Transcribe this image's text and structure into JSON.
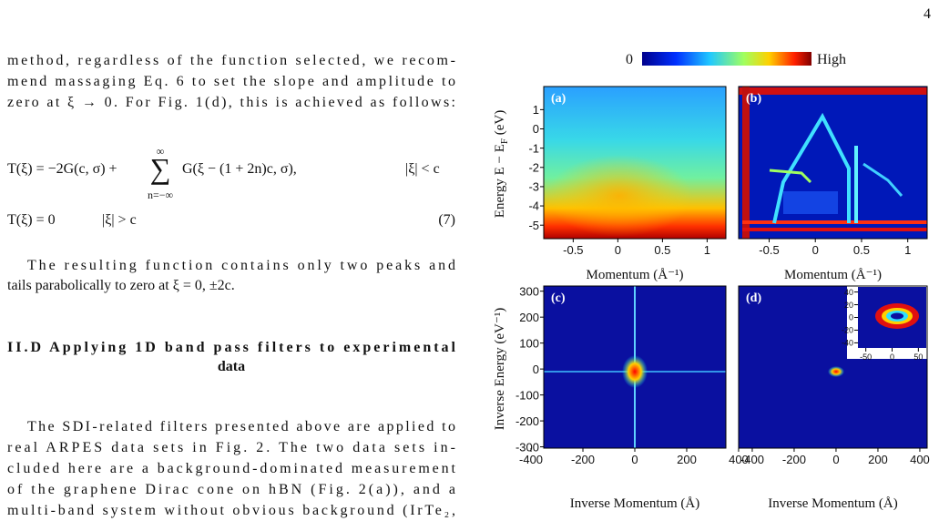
{
  "page_number": "4",
  "body": {
    "paragraph_1": [
      "method, regardless of the function selected, we recom-",
      "mend massaging Eq. 6 to set the slope and amplitude to",
      "zero at ξ → 0. For Fig. 1(d), this is achieved as follows:"
    ],
    "equation": {
      "line_1": {
        "lhs": "T(ξ) = −2G(c, σ) +",
        "sum": "∑",
        "upper": "∞",
        "lower": "n=−∞",
        "term": "G(ξ − (1 + 2n)c, σ),",
        "condition": "|ξ| < c"
      },
      "line_2": {
        "lhs": "T(ξ) = 0",
        "condition": "|ξ| > c",
        "number": "(7)"
      }
    },
    "paragraph_2": [
      "The resulting function contains only two peaks and",
      "tails parabolically to zero at ξ = 0, ±2c."
    ],
    "heading": [
      "II.D Applying 1D band pass filters to experimental",
      "data"
    ],
    "paragraph_3": [
      "The SDI-related filters presented above are applied to",
      "real ARPES data sets in Fig. 2. The two data sets in-",
      "cluded here are a background-dominated measurement",
      "of the graphene Dirac cone on hBN (Fig. 2(a)), and a",
      "multi-band system without obvious background (IrTe₂,"
    ]
  },
  "figure": {
    "colorbar": {
      "low": "0",
      "high": "High"
    },
    "y_labels": [
      {
        "main": "Energy  E − E",
        "sub": "F",
        "unit": " (eV)"
      },
      {
        "main": "Inverse Energy  (eV⁻¹)"
      }
    ],
    "panels": [
      {
        "label": "(a)",
        "x_label": "Momentum (Å⁻¹)",
        "xlim": [
          -0.83,
          1.21
        ],
        "ylim": [
          -5.7,
          2.2
        ],
        "xticks": [
          -0.5,
          0,
          0.5,
          1
        ],
        "yticks": [
          1,
          0,
          -1,
          -2,
          -3,
          -4,
          -5
        ]
      },
      {
        "label": "(b)",
        "x_label": "Momentum (Å⁻¹)",
        "xlim": [
          -0.83,
          1.21
        ],
        "ylim": [
          -5.7,
          2.2
        ],
        "xticks": [
          -0.5,
          0,
          0.5,
          1
        ]
      },
      {
        "label": "(c)",
        "x_label": "Inverse Momentum (Å)",
        "xlim": [
          -351,
          351
        ],
        "ylim": [
          -305,
          320
        ],
        "xticks": [
          -400,
          -200,
          0,
          200,
          400
        ],
        "yticks": [
          300,
          200,
          100,
          0,
          -100,
          -200,
          -300
        ]
      },
      {
        "label": "(d)",
        "x_label": "Inverse Momentum (Å)",
        "xlim": [
          -465,
          435
        ],
        "ylim": [
          -305,
          320
        ],
        "xticks": [
          -400,
          -200,
          0,
          200,
          400
        ]
      }
    ],
    "inset": {
      "xlim": [
        -65,
        65
      ],
      "ylim": [
        -48,
        48
      ],
      "xticks": [
        -50,
        0,
        50
      ],
      "yticks": [
        40,
        20,
        0,
        -20,
        -40
      ]
    }
  }
}
